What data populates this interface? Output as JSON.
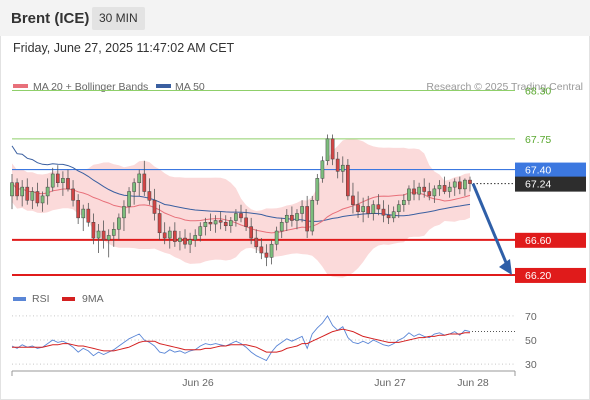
{
  "header": {
    "title": "Brent (ICE)",
    "interval": "30 MIN"
  },
  "timestamp": "Friday, June 27, 2025 11:47:02 AM CET",
  "legend": {
    "ma20": "MA 20 + Bollinger Bands",
    "ma50": "MA 50",
    "credit": "Research © 2025 Trading Central"
  },
  "colors": {
    "ma20": "#e8707a",
    "ma50": "#3a5fa0",
    "band": "#fbdada",
    "up_candle": "#7cbd7c",
    "down_candle": "#d24545",
    "support": "#e01b1b",
    "resistance": "#8fcf6a",
    "pivot": "#3c78e0",
    "arrow": "#2f5fa8",
    "rsi": "#5a86d6",
    "rsi_ma": "#d42020"
  },
  "chart_data": [
    {
      "type": "candlestick",
      "x_labels": [
        "Jun 26",
        "Jun 27",
        "Jun 28"
      ],
      "ylim": [
        66.0,
        68.6
      ],
      "last_price": 67.24,
      "resistance_levels": [
        68.3,
        67.75
      ],
      "pivot_level": 67.4,
      "support_levels": [
        66.6,
        66.2
      ],
      "forecast": {
        "from": 67.24,
        "to": 66.2
      },
      "ohlc": [
        [
          67.1,
          67.35,
          66.95,
          67.25
        ],
        [
          67.25,
          67.3,
          67.05,
          67.1
        ],
        [
          67.1,
          67.28,
          66.98,
          67.2
        ],
        [
          67.2,
          67.3,
          67.0,
          67.05
        ],
        [
          67.05,
          67.2,
          66.95,
          67.15
        ],
        [
          67.15,
          67.25,
          66.98,
          67.02
        ],
        [
          67.02,
          67.15,
          66.92,
          67.1
        ],
        [
          67.1,
          67.3,
          67.0,
          67.2
        ],
        [
          67.2,
          67.42,
          67.15,
          67.35
        ],
        [
          67.35,
          67.45,
          67.2,
          67.25
        ],
        [
          67.25,
          67.38,
          67.1,
          67.3
        ],
        [
          67.3,
          67.4,
          67.15,
          67.18
        ],
        [
          67.18,
          67.28,
          66.98,
          67.05
        ],
        [
          67.05,
          67.12,
          66.78,
          66.85
        ],
        [
          66.85,
          67.0,
          66.7,
          66.95
        ],
        [
          66.95,
          67.02,
          66.75,
          66.8
        ],
        [
          66.8,
          66.9,
          66.55,
          66.62
        ],
        [
          66.62,
          66.78,
          66.45,
          66.7
        ],
        [
          66.7,
          66.82,
          66.5,
          66.6
        ],
        [
          66.6,
          66.72,
          66.4,
          66.65
        ],
        [
          66.65,
          66.8,
          66.52,
          66.72
        ],
        [
          66.72,
          66.9,
          66.6,
          66.85
        ],
        [
          66.85,
          67.05,
          66.7,
          66.98
        ],
        [
          66.98,
          67.2,
          66.9,
          67.15
        ],
        [
          67.15,
          67.3,
          67.0,
          67.25
        ],
        [
          67.25,
          67.4,
          67.1,
          67.35
        ],
        [
          67.35,
          67.5,
          67.1,
          67.15
        ],
        [
          67.15,
          67.3,
          67.0,
          67.05
        ],
        [
          67.05,
          67.18,
          66.82,
          66.9
        ],
        [
          66.9,
          67.0,
          66.6,
          66.68
        ],
        [
          66.68,
          66.8,
          66.55,
          66.62
        ],
        [
          66.62,
          66.75,
          66.5,
          66.7
        ],
        [
          66.7,
          66.8,
          66.52,
          66.58
        ],
        [
          66.58,
          66.7,
          66.48,
          66.62
        ],
        [
          66.62,
          66.72,
          66.5,
          66.55
        ],
        [
          66.55,
          66.68,
          66.45,
          66.6
        ],
        [
          66.6,
          66.72,
          66.52,
          66.65
        ],
        [
          66.65,
          66.8,
          66.58,
          66.75
        ],
        [
          66.75,
          66.85,
          66.65,
          66.8
        ],
        [
          66.8,
          66.9,
          66.7,
          66.78
        ],
        [
          66.78,
          66.88,
          66.68,
          66.82
        ],
        [
          66.82,
          66.92,
          66.72,
          66.8
        ],
        [
          66.8,
          66.88,
          66.7,
          66.76
        ],
        [
          66.76,
          66.86,
          66.68,
          66.82
        ],
        [
          66.82,
          66.95,
          66.75,
          66.9
        ],
        [
          66.9,
          67.0,
          66.8,
          66.85
        ],
        [
          66.85,
          66.95,
          66.7,
          66.75
        ],
        [
          66.75,
          66.85,
          66.55,
          66.62
        ],
        [
          66.62,
          66.72,
          66.45,
          66.52
        ],
        [
          66.52,
          66.62,
          66.38,
          66.45
        ],
        [
          66.45,
          66.55,
          66.3,
          66.4
        ],
        [
          66.4,
          66.6,
          66.32,
          66.55
        ],
        [
          66.55,
          66.75,
          66.48,
          66.7
        ],
        [
          66.7,
          66.85,
          66.62,
          66.8
        ],
        [
          66.8,
          66.95,
          66.7,
          66.88
        ],
        [
          66.88,
          66.98,
          66.75,
          66.82
        ],
        [
          66.82,
          66.95,
          66.72,
          66.9
        ],
        [
          66.9,
          67.05,
          66.8,
          66.98
        ],
        [
          66.98,
          67.1,
          66.62,
          66.7
        ],
        [
          66.7,
          67.1,
          66.65,
          67.05
        ],
        [
          67.05,
          67.35,
          67.0,
          67.3
        ],
        [
          67.3,
          67.55,
          67.25,
          67.5
        ],
        [
          67.5,
          67.8,
          67.45,
          67.75
        ],
        [
          67.75,
          67.8,
          67.45,
          67.52
        ],
        [
          67.52,
          67.6,
          67.3,
          67.38
        ],
        [
          67.38,
          67.55,
          67.25,
          67.45
        ],
        [
          67.45,
          67.52,
          67.05,
          67.1
        ],
        [
          67.1,
          67.25,
          66.9,
          67.0
        ],
        [
          67.0,
          67.15,
          66.85,
          66.92
        ],
        [
          66.92,
          67.08,
          66.8,
          66.98
        ],
        [
          66.98,
          67.1,
          66.85,
          66.9
        ],
        [
          66.9,
          67.05,
          66.82,
          67.0
        ],
        [
          67.0,
          67.12,
          66.88,
          66.95
        ],
        [
          66.95,
          67.05,
          66.8,
          66.88
        ],
        [
          66.88,
          67.0,
          66.78,
          66.85
        ],
        [
          66.85,
          66.98,
          66.8,
          66.92
        ],
        [
          66.92,
          67.05,
          66.85,
          67.0
        ],
        [
          67.0,
          67.12,
          66.92,
          67.05
        ],
        [
          67.05,
          67.22,
          67.0,
          67.18
        ],
        [
          67.18,
          67.28,
          67.05,
          67.12
        ],
        [
          67.12,
          67.25,
          67.05,
          67.2
        ],
        [
          67.2,
          67.3,
          67.08,
          67.15
        ],
        [
          67.15,
          67.25,
          67.05,
          67.1
        ],
        [
          67.1,
          67.22,
          67.02,
          67.18
        ],
        [
          67.18,
          67.28,
          67.1,
          67.22
        ],
        [
          67.22,
          67.32,
          67.12,
          67.15
        ],
        [
          67.15,
          67.26,
          67.08,
          67.2
        ],
        [
          67.2,
          67.3,
          67.1,
          67.26
        ],
        [
          67.26,
          67.32,
          67.12,
          67.18
        ],
        [
          67.18,
          67.3,
          67.1,
          67.28
        ],
        [
          67.28,
          67.32,
          67.15,
          67.24
        ]
      ]
    },
    {
      "type": "line",
      "name": "RSI",
      "legend": [
        "RSI",
        "9MA"
      ],
      "y_ticks": [
        70,
        50,
        30
      ],
      "ylim": [
        20,
        80
      ],
      "rsi": [
        45,
        43,
        46,
        44,
        45,
        43,
        44,
        47,
        50,
        48,
        49,
        47,
        44,
        40,
        43,
        41,
        37,
        40,
        38,
        40,
        42,
        45,
        48,
        51,
        53,
        55,
        50,
        48,
        45,
        40,
        39,
        42,
        40,
        41,
        39,
        41,
        42,
        45,
        47,
        46,
        47,
        46,
        45,
        47,
        49,
        47,
        44,
        40,
        37,
        35,
        33,
        40,
        45,
        48,
        51,
        49,
        51,
        53,
        43,
        55,
        60,
        64,
        70,
        62,
        58,
        61,
        52,
        48,
        47,
        49,
        47,
        50,
        48,
        46,
        45,
        47,
        50,
        52,
        56,
        53,
        55,
        53,
        52,
        55,
        56,
        54,
        55,
        57,
        54,
        58,
        57
      ],
      "rsi_ma": [
        44,
        44,
        44,
        44,
        44,
        44,
        44,
        45,
        46,
        46,
        47,
        47,
        46,
        45,
        45,
        44,
        43,
        42,
        41,
        41,
        41,
        42,
        43,
        44,
        46,
        48,
        49,
        49,
        49,
        47,
        46,
        45,
        44,
        43,
        42,
        42,
        42,
        42,
        43,
        43,
        44,
        45,
        45,
        46,
        46,
        46,
        46,
        45,
        44,
        42,
        40,
        40,
        40,
        41,
        43,
        44,
        45,
        47,
        47,
        49,
        51,
        53,
        55,
        57,
        58,
        59,
        58,
        57,
        55,
        53,
        52,
        51,
        50,
        49,
        48,
        48,
        48,
        49,
        50,
        51,
        52,
        52,
        53,
        53,
        54,
        54,
        55,
        55,
        55,
        56,
        56
      ]
    }
  ]
}
